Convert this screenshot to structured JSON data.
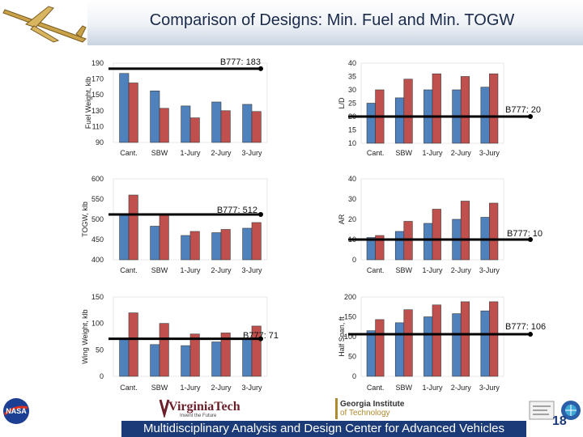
{
  "title": "Comparison of Designs: Min. Fuel and Min. TOGW",
  "footer": {
    "text": "Multidisciplinary Analysis and Design Center for Advanced Vehicles",
    "page": "18",
    "vt_name": "VirginiaTech",
    "vt_sub": "Invent the Future",
    "gt_name": "Georgia Institute",
    "gt_sub": "of Technology"
  },
  "colors": {
    "series_blue": "#4f81bd",
    "series_red": "#c0504d",
    "ref_line": "#000000",
    "footer": "#1b3b78"
  },
  "chart_data": [
    {
      "type": "bar",
      "categories": [
        "Cant.",
        "SBW",
        "1-Jury",
        "2-Jury",
        "3-Jury"
      ],
      "ylabel": "Fuel Weight, klb",
      "ylim": [
        90,
        190
      ],
      "yticks": [
        90,
        110,
        130,
        150,
        170,
        190
      ],
      "series": [
        {
          "values": [
            177,
            155,
            136,
            141,
            138
          ]
        },
        {
          "values": [
            165,
            133,
            121,
            130,
            129
          ]
        }
      ],
      "reference": {
        "label": "B777: 183",
        "value": 183
      }
    },
    {
      "type": "bar",
      "categories": [
        "Cant.",
        "SBW",
        "1-Jury",
        "2-Jury",
        "3-Jury"
      ],
      "ylabel": "L/D",
      "ylim": [
        10,
        40
      ],
      "yticks": [
        10,
        15,
        20,
        25,
        30,
        35,
        40
      ],
      "series": [
        {
          "values": [
            25,
            27,
            30,
            30,
            31
          ]
        },
        {
          "values": [
            30,
            34,
            36,
            35,
            36
          ]
        }
      ],
      "reference": {
        "label": "B777: 20",
        "value": 20
      }
    },
    {
      "type": "bar",
      "categories": [
        "Cant.",
        "SBW",
        "1-Jury",
        "2-Jury",
        "3-Jury"
      ],
      "ylabel": "TOGW, klb",
      "ylim": [
        400,
        600
      ],
      "yticks": [
        400,
        450,
        500,
        550,
        600
      ],
      "series": [
        {
          "values": [
            514,
            483,
            460,
            467,
            478
          ]
        },
        {
          "values": [
            560,
            510,
            470,
            475,
            492
          ]
        }
      ],
      "reference": {
        "label": "B777: 512",
        "value": 512
      }
    },
    {
      "type": "bar",
      "categories": [
        "Cant.",
        "SBW",
        "1-Jury",
        "2-Jury",
        "3-Jury"
      ],
      "ylabel": "AR",
      "ylim": [
        0,
        40
      ],
      "yticks": [
        0,
        10,
        20,
        30,
        40
      ],
      "series": [
        {
          "values": [
            11,
            14,
            18,
            20,
            21
          ]
        },
        {
          "values": [
            12,
            19,
            25,
            29,
            28
          ]
        }
      ],
      "reference": {
        "label": "B777: 10",
        "value": 10
      }
    },
    {
      "type": "bar",
      "categories": [
        "Cant.",
        "SBW",
        "1-Jury",
        "2-Jury",
        "3-Jury"
      ],
      "ylabel": "Wing Weight, klb",
      "ylim": [
        0,
        150
      ],
      "yticks": [
        0,
        50,
        100,
        150
      ],
      "series": [
        {
          "values": [
            70,
            60,
            58,
            65,
            70
          ]
        },
        {
          "values": [
            120,
            100,
            80,
            82,
            95
          ]
        }
      ],
      "reference": {
        "label": "B777: 71",
        "value": 71
      }
    },
    {
      "type": "bar",
      "categories": [
        "Cant.",
        "SBW",
        "1-Jury",
        "2-Jury",
        "3-Jury"
      ],
      "ylabel": "Half Span, ft",
      "ylim": [
        0,
        200
      ],
      "yticks": [
        0,
        50,
        100,
        150,
        200
      ],
      "series": [
        {
          "values": [
            115,
            135,
            150,
            158,
            165
          ]
        },
        {
          "values": [
            143,
            168,
            180,
            188,
            188
          ]
        }
      ],
      "reference": {
        "label": "B777: 106",
        "value": 106
      }
    }
  ]
}
